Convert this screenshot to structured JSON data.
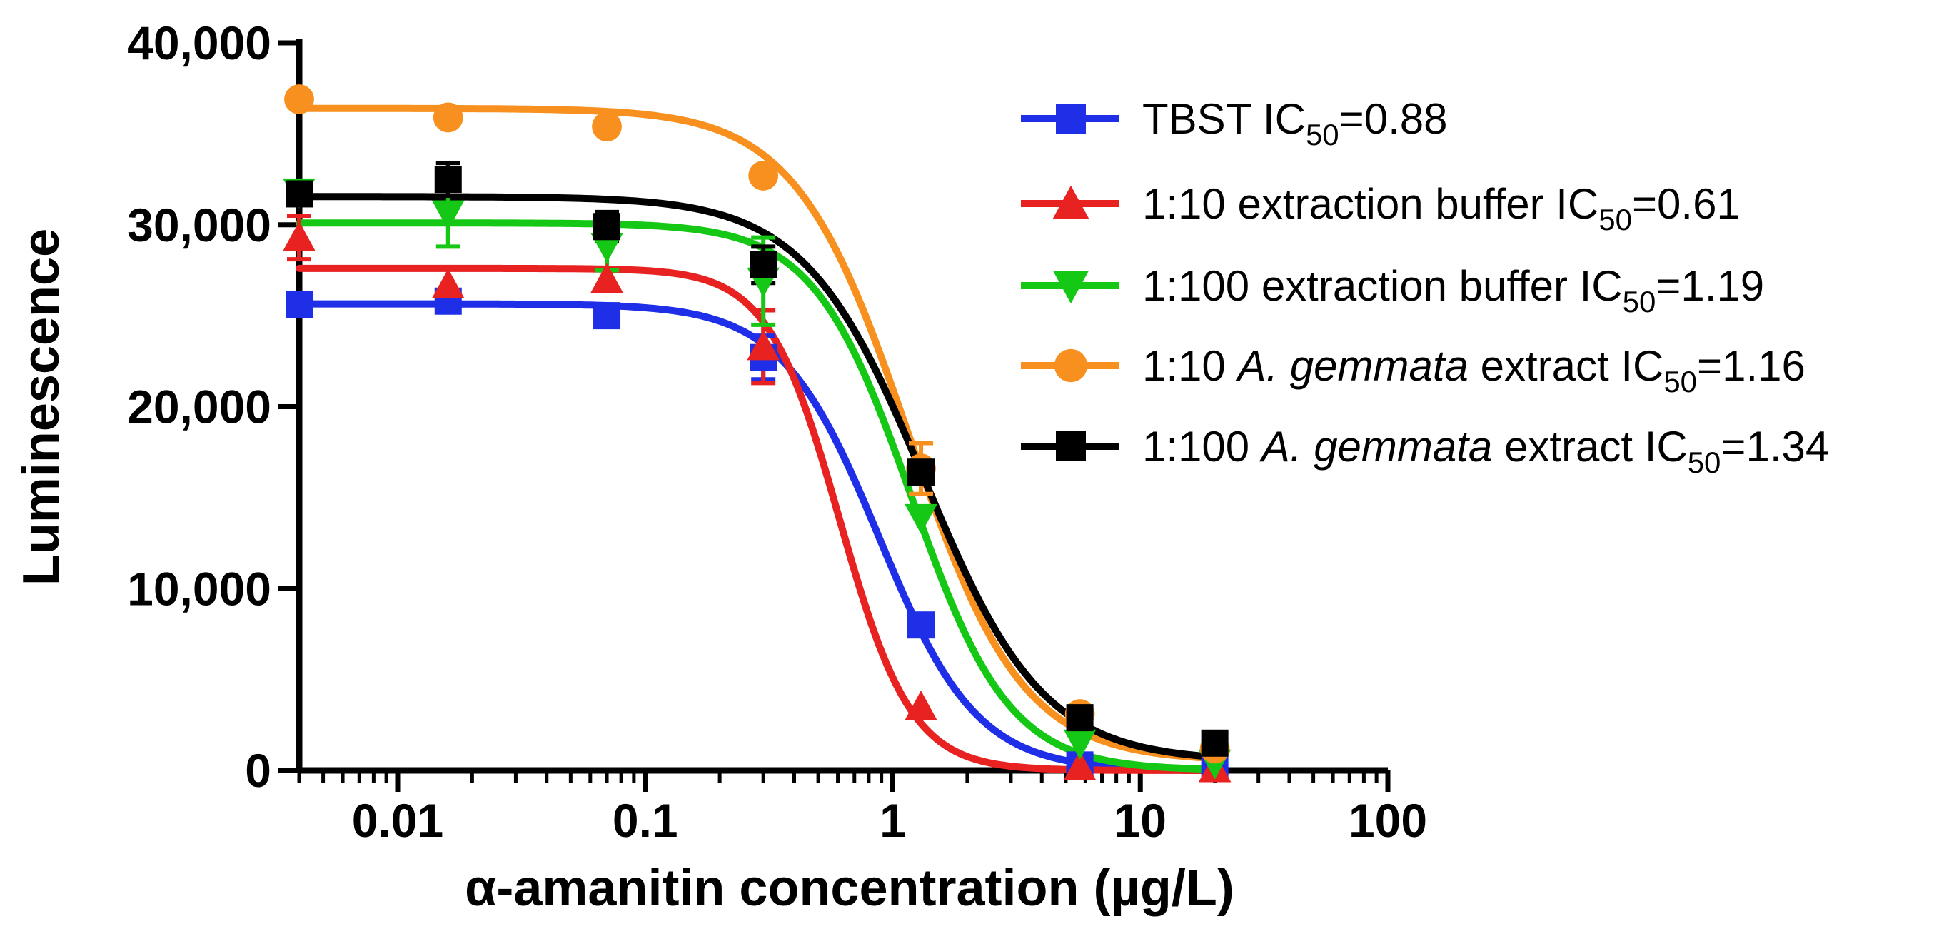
{
  "chart_data": {
    "type": "scatter",
    "title": "",
    "xlabel": "α-amanitin concentration (µg/L)",
    "ylabel": "Luminescence",
    "xscale": "log",
    "xlim": [
      0.004,
      100
    ],
    "ylim": [
      0,
      40000
    ],
    "x_ticks": [
      {
        "value": 0.01,
        "label": "0.01"
      },
      {
        "value": 0.1,
        "label": "0.1"
      },
      {
        "value": 1,
        "label": "1"
      },
      {
        "value": 10,
        "label": "10"
      },
      {
        "value": 100,
        "label": "100"
      }
    ],
    "y_ticks": [
      {
        "value": 0,
        "label": "0"
      },
      {
        "value": 10000,
        "label": "10,000"
      },
      {
        "value": 20000,
        "label": "20,000"
      },
      {
        "value": 30000,
        "label": "30,000"
      },
      {
        "value": 40000,
        "label": "40,000"
      }
    ],
    "legend_position": "top-right",
    "grid": false,
    "series": [
      {
        "name": "TBST",
        "legend_prefix": "TBST IC",
        "legend_italic": "",
        "legend_suffix": "",
        "ic_sub": "50",
        "ic_value": "=0.88",
        "color": "#1f2fe8",
        "marker": "square",
        "x": [
          0.004,
          0.016,
          0.07,
          0.3,
          1.3,
          5.7,
          20
        ],
        "y": [
          25600,
          25800,
          25000,
          22700,
          8000,
          300,
          200
        ],
        "err": [
          0,
          0,
          0,
          1200,
          0,
          0,
          0
        ],
        "fit": {
          "top": 25650,
          "bottom": 0,
          "ic50": 0.88,
          "hill": 2.2
        }
      },
      {
        "name": "1:10 extraction buffer",
        "legend_prefix": "1:10 extraction buffer IC",
        "legend_italic": "",
        "legend_suffix": "",
        "ic_sub": "50",
        "ic_value": "=0.61",
        "color": "#e82121",
        "marker": "triangle-up",
        "x": [
          0.004,
          0.016,
          0.07,
          0.3,
          1.3,
          5.7,
          20
        ],
        "y": [
          29300,
          26700,
          27000,
          23300,
          3500,
          200,
          100
        ],
        "err": [
          1200,
          0,
          0,
          2000,
          0,
          0,
          0
        ],
        "fit": {
          "top": 27600,
          "bottom": 0,
          "ic50": 0.61,
          "hill": 3.0
        }
      },
      {
        "name": "1:100 extraction buffer",
        "legend_prefix": "1:100 extraction buffer IC",
        "legend_italic": "",
        "legend_suffix": "",
        "ic_sub": "50",
        "ic_value": "=1.19",
        "color": "#16c816",
        "marker": "triangle-down",
        "x": [
          0.004,
          0.016,
          0.07,
          0.3,
          1.3,
          5.7,
          20
        ],
        "y": [
          31800,
          30600,
          28800,
          26900,
          13900,
          1500,
          400
        ],
        "err": [
          0,
          1800,
          1300,
          2400,
          0,
          0,
          0
        ],
        "fit": {
          "top": 30100,
          "bottom": 0,
          "ic50": 1.19,
          "hill": 2.2
        }
      },
      {
        "name": "1:10 A. gemmata extract",
        "legend_prefix": "1:10 ",
        "legend_italic": "A. gemmata",
        "legend_suffix": " extract IC",
        "ic_sub": "50",
        "ic_value": "=1.16",
        "color": "#f7901e",
        "marker": "circle",
        "x": [
          0.004,
          0.016,
          0.07,
          0.3,
          1.3,
          5.7,
          20
        ],
        "y": [
          36900,
          35900,
          35400,
          32700,
          16600,
          3100,
          1200
        ],
        "err": [
          0,
          0,
          0,
          0,
          1400,
          0,
          0
        ],
        "fit": {
          "top": 36400,
          "bottom": 500,
          "ic50": 1.16,
          "hill": 1.9
        }
      },
      {
        "name": "1:100 A. gemmata extract",
        "legend_prefix": "1:100 ",
        "legend_italic": "A. gemmata",
        "legend_suffix": " extract IC",
        "ic_sub": "50",
        "ic_value": "=1.34",
        "color": "#000000",
        "marker": "square",
        "x": [
          0.004,
          0.016,
          0.07,
          0.3,
          1.3,
          5.7,
          20
        ],
        "y": [
          31700,
          32500,
          29900,
          27800,
          16400,
          2900,
          1500
        ],
        "err": [
          0,
          900,
          800,
          1000,
          0,
          0,
          0
        ],
        "fit": {
          "top": 31550,
          "bottom": 500,
          "ic50": 1.34,
          "hill": 1.8
        }
      }
    ]
  }
}
